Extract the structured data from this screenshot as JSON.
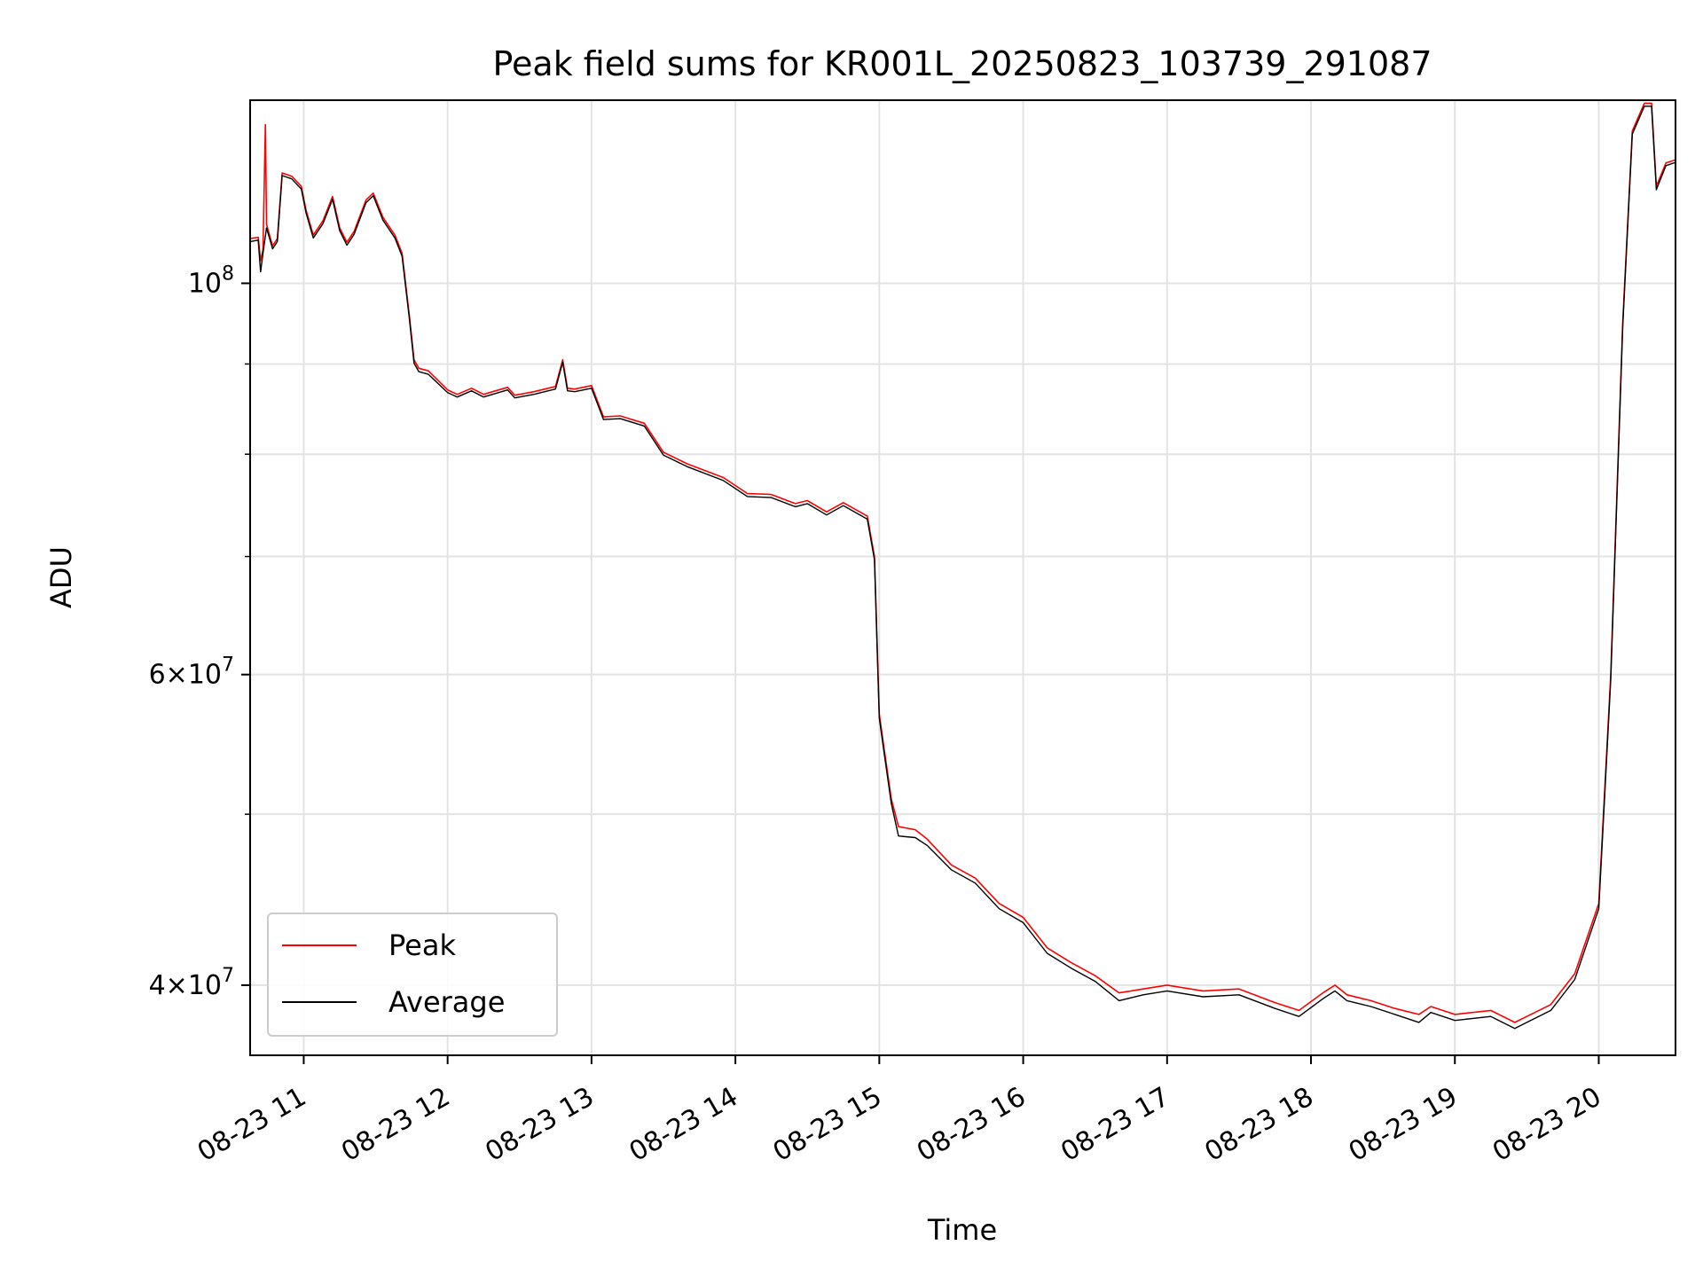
{
  "chart_data": {
    "type": "line",
    "title": "Peak field sums for KR001L_20250823_103739_291087",
    "xlabel": "Time",
    "ylabel": "ADU",
    "yscale": "log",
    "grid": true,
    "legend_position": "lower-left",
    "xlim": [
      "2025-08-23T10:37:39",
      "2025-08-23T20:32:00"
    ],
    "ylim": [
      36500000,
      127000000
    ],
    "x_ticks": [
      {
        "t": "2025-08-23T11:00",
        "label": "08-23 11"
      },
      {
        "t": "2025-08-23T12:00",
        "label": "08-23 12"
      },
      {
        "t": "2025-08-23T13:00",
        "label": "08-23 13"
      },
      {
        "t": "2025-08-23T14:00",
        "label": "08-23 14"
      },
      {
        "t": "2025-08-23T15:00",
        "label": "08-23 15"
      },
      {
        "t": "2025-08-23T16:00",
        "label": "08-23 16"
      },
      {
        "t": "2025-08-23T17:00",
        "label": "08-23 17"
      },
      {
        "t": "2025-08-23T18:00",
        "label": "08-23 18"
      },
      {
        "t": "2025-08-23T19:00",
        "label": "08-23 19"
      },
      {
        "t": "2025-08-23T20:00",
        "label": "08-23 20"
      }
    ],
    "y_major_ticks": [
      {
        "v": 40000000,
        "mant": "4",
        "exp": "7"
      },
      {
        "v": 60000000,
        "mant": "6",
        "exp": "7"
      },
      {
        "v": 100000000,
        "mant": "",
        "exp": "8"
      }
    ],
    "y_minor_gridlines": [
      50000000,
      70000000,
      80000000,
      90000000
    ],
    "series": [
      {
        "name": "Peak",
        "color": "#ff0000",
        "points": [
          [
            "2025-08-23T10:37:39",
            106000000
          ],
          [
            "2025-08-23T10:41:00",
            106200000
          ],
          [
            "2025-08-23T10:42:00",
            103000000
          ],
          [
            "2025-08-23T10:43:00",
            104500000
          ],
          [
            "2025-08-23T10:44:00",
            123000000
          ],
          [
            "2025-08-23T10:44:30",
            108000000
          ],
          [
            "2025-08-23T10:47:00",
            105000000
          ],
          [
            "2025-08-23T10:49:00",
            106000000
          ],
          [
            "2025-08-23T10:51:00",
            115500000
          ],
          [
            "2025-08-23T10:55:00",
            115000000
          ],
          [
            "2025-08-23T10:59:00",
            113500000
          ],
          [
            "2025-08-23T11:01:00",
            110000000
          ],
          [
            "2025-08-23T11:04:00",
            106500000
          ],
          [
            "2025-08-23T11:08:00",
            108500000
          ],
          [
            "2025-08-23T11:12:00",
            112000000
          ],
          [
            "2025-08-23T11:15:00",
            107500000
          ],
          [
            "2025-08-23T11:18:00",
            105500000
          ],
          [
            "2025-08-23T11:21:00",
            107000000
          ],
          [
            "2025-08-23T11:26:00",
            111500000
          ],
          [
            "2025-08-23T11:29:00",
            112500000
          ],
          [
            "2025-08-23T11:33:00",
            109000000
          ],
          [
            "2025-08-23T11:38:00",
            106500000
          ],
          [
            "2025-08-23T11:41:00",
            104000000
          ],
          [
            "2025-08-23T11:44:00",
            96000000
          ],
          [
            "2025-08-23T11:46:00",
            90500000
          ],
          [
            "2025-08-23T11:48:00",
            89500000
          ],
          [
            "2025-08-23T11:52:00",
            89200000
          ],
          [
            "2025-08-23T12:00:00",
            87000000
          ],
          [
            "2025-08-23T12:04:00",
            86500000
          ],
          [
            "2025-08-23T12:10:00",
            87200000
          ],
          [
            "2025-08-23T12:15:00",
            86500000
          ],
          [
            "2025-08-23T12:20:00",
            86900000
          ],
          [
            "2025-08-23T12:25:00",
            87300000
          ],
          [
            "2025-08-23T12:28:00",
            86400000
          ],
          [
            "2025-08-23T12:36:00",
            86800000
          ],
          [
            "2025-08-23T12:45:00",
            87400000
          ],
          [
            "2025-08-23T12:48:00",
            90500000
          ],
          [
            "2025-08-23T12:50:00",
            87200000
          ],
          [
            "2025-08-23T12:53:00",
            87100000
          ],
          [
            "2025-08-23T13:00:00",
            87500000
          ],
          [
            "2025-08-23T13:05:00",
            84000000
          ],
          [
            "2025-08-23T13:12:00",
            84100000
          ],
          [
            "2025-08-23T13:22:00",
            83300000
          ],
          [
            "2025-08-23T13:30:00",
            80200000
          ],
          [
            "2025-08-23T13:40:00",
            79000000
          ],
          [
            "2025-08-23T13:55:00",
            77600000
          ],
          [
            "2025-08-23T14:05:00",
            76000000
          ],
          [
            "2025-08-23T14:15:00",
            75900000
          ],
          [
            "2025-08-23T14:25:00",
            75000000
          ],
          [
            "2025-08-23T14:30:00",
            75300000
          ],
          [
            "2025-08-23T14:38:00",
            74200000
          ],
          [
            "2025-08-23T14:45:00",
            75100000
          ],
          [
            "2025-08-23T14:55:00",
            73800000
          ],
          [
            "2025-08-23T14:58:00",
            70000000
          ],
          [
            "2025-08-23T15:00:00",
            57000000
          ],
          [
            "2025-08-23T15:02:00",
            54500000
          ],
          [
            "2025-08-23T15:05:00",
            51000000
          ],
          [
            "2025-08-23T15:08:00",
            49200000
          ],
          [
            "2025-08-23T15:15:00",
            49000000
          ],
          [
            "2025-08-23T15:20:00",
            48400000
          ],
          [
            "2025-08-23T15:30:00",
            46800000
          ],
          [
            "2025-08-23T15:40:00",
            46000000
          ],
          [
            "2025-08-23T15:50:00",
            44500000
          ],
          [
            "2025-08-23T16:00:00",
            43700000
          ],
          [
            "2025-08-23T16:10:00",
            42000000
          ],
          [
            "2025-08-23T16:20:00",
            41200000
          ],
          [
            "2025-08-23T16:30:00",
            40500000
          ],
          [
            "2025-08-23T16:40:00",
            39600000
          ],
          [
            "2025-08-23T16:50:00",
            39800000
          ],
          [
            "2025-08-23T17:00:00",
            40000000
          ],
          [
            "2025-08-23T17:15:00",
            39700000
          ],
          [
            "2025-08-23T17:30:00",
            39800000
          ],
          [
            "2025-08-23T17:45:00",
            39100000
          ],
          [
            "2025-08-23T17:55:00",
            38700000
          ],
          [
            "2025-08-23T18:05:00",
            39600000
          ],
          [
            "2025-08-23T18:10:00",
            40000000
          ],
          [
            "2025-08-23T18:15:00",
            39500000
          ],
          [
            "2025-08-23T18:25:00",
            39200000
          ],
          [
            "2025-08-23T18:35:00",
            38800000
          ],
          [
            "2025-08-23T18:45:00",
            38500000
          ],
          [
            "2025-08-23T18:50:00",
            38900000
          ],
          [
            "2025-08-23T19:00:00",
            38500000
          ],
          [
            "2025-08-23T19:15:00",
            38700000
          ],
          [
            "2025-08-23T19:25:00",
            38100000
          ],
          [
            "2025-08-23T19:30:00",
            38400000
          ],
          [
            "2025-08-23T19:40:00",
            39000000
          ],
          [
            "2025-08-23T19:50:00",
            40600000
          ],
          [
            "2025-08-23T20:00:00",
            44500000
          ],
          [
            "2025-08-23T20:05:00",
            60000000
          ],
          [
            "2025-08-23T20:10:00",
            95000000
          ],
          [
            "2025-08-23T20:14:00",
            122000000
          ],
          [
            "2025-08-23T20:19:00",
            126500000
          ],
          [
            "2025-08-23T20:22:00",
            126500000
          ],
          [
            "2025-08-23T20:24:00",
            113500000
          ],
          [
            "2025-08-23T20:28:00",
            117000000
          ],
          [
            "2025-08-23T20:32:00",
            117500000
          ]
        ]
      },
      {
        "name": "Average",
        "color": "#000000",
        "points": [
          [
            "2025-08-23T10:37:39",
            105600000
          ],
          [
            "2025-08-23T10:41:00",
            105800000
          ],
          [
            "2025-08-23T10:42:00",
            101500000
          ],
          [
            "2025-08-23T10:43:00",
            104000000
          ],
          [
            "2025-08-23T10:44:30",
            107500000
          ],
          [
            "2025-08-23T10:47:00",
            104600000
          ],
          [
            "2025-08-23T10:49:00",
            105600000
          ],
          [
            "2025-08-23T10:51:00",
            115100000
          ],
          [
            "2025-08-23T10:55:00",
            114600000
          ],
          [
            "2025-08-23T10:59:00",
            113100000
          ],
          [
            "2025-08-23T11:01:00",
            109600000
          ],
          [
            "2025-08-23T11:04:00",
            106100000
          ],
          [
            "2025-08-23T11:08:00",
            108100000
          ],
          [
            "2025-08-23T11:12:00",
            111600000
          ],
          [
            "2025-08-23T11:15:00",
            107100000
          ],
          [
            "2025-08-23T11:18:00",
            105100000
          ],
          [
            "2025-08-23T11:21:00",
            106600000
          ],
          [
            "2025-08-23T11:26:00",
            111100000
          ],
          [
            "2025-08-23T11:29:00",
            112100000
          ],
          [
            "2025-08-23T11:33:00",
            108600000
          ],
          [
            "2025-08-23T11:38:00",
            106100000
          ],
          [
            "2025-08-23T11:41:00",
            103600000
          ],
          [
            "2025-08-23T11:44:00",
            95600000
          ],
          [
            "2025-08-23T11:46:00",
            90100000
          ],
          [
            "2025-08-23T11:48:00",
            89100000
          ],
          [
            "2025-08-23T11:52:00",
            88800000
          ],
          [
            "2025-08-23T12:00:00",
            86700000
          ],
          [
            "2025-08-23T12:04:00",
            86200000
          ],
          [
            "2025-08-23T12:10:00",
            86900000
          ],
          [
            "2025-08-23T12:15:00",
            86200000
          ],
          [
            "2025-08-23T12:20:00",
            86600000
          ],
          [
            "2025-08-23T12:25:00",
            87000000
          ],
          [
            "2025-08-23T12:28:00",
            86100000
          ],
          [
            "2025-08-23T12:36:00",
            86500000
          ],
          [
            "2025-08-23T12:45:00",
            87100000
          ],
          [
            "2025-08-23T12:48:00",
            90200000
          ],
          [
            "2025-08-23T12:50:00",
            86900000
          ],
          [
            "2025-08-23T12:53:00",
            86800000
          ],
          [
            "2025-08-23T13:00:00",
            87200000
          ],
          [
            "2025-08-23T13:05:00",
            83700000
          ],
          [
            "2025-08-23T13:12:00",
            83800000
          ],
          [
            "2025-08-23T13:22:00",
            83000000
          ],
          [
            "2025-08-23T13:30:00",
            79900000
          ],
          [
            "2025-08-23T13:40:00",
            78700000
          ],
          [
            "2025-08-23T13:55:00",
            77300000
          ],
          [
            "2025-08-23T14:05:00",
            75700000
          ],
          [
            "2025-08-23T14:15:00",
            75600000
          ],
          [
            "2025-08-23T14:25:00",
            74700000
          ],
          [
            "2025-08-23T14:30:00",
            75000000
          ],
          [
            "2025-08-23T14:38:00",
            73900000
          ],
          [
            "2025-08-23T14:45:00",
            74800000
          ],
          [
            "2025-08-23T14:55:00",
            73500000
          ],
          [
            "2025-08-23T14:58:00",
            69700000
          ],
          [
            "2025-08-23T15:00:00",
            56700000
          ],
          [
            "2025-08-23T15:02:00",
            54200000
          ],
          [
            "2025-08-23T15:05:00",
            50700000
          ],
          [
            "2025-08-23T15:08:00",
            48600000
          ],
          [
            "2025-08-23T15:15:00",
            48500000
          ],
          [
            "2025-08-23T15:20:00",
            48000000
          ],
          [
            "2025-08-23T15:30:00",
            46500000
          ],
          [
            "2025-08-23T15:40:00",
            45700000
          ],
          [
            "2025-08-23T15:50:00",
            44200000
          ],
          [
            "2025-08-23T16:00:00",
            43400000
          ],
          [
            "2025-08-23T16:10:00",
            41700000
          ],
          [
            "2025-08-23T16:20:00",
            40900000
          ],
          [
            "2025-08-23T16:30:00",
            40200000
          ],
          [
            "2025-08-23T16:40:00",
            39200000
          ],
          [
            "2025-08-23T16:50:00",
            39500000
          ],
          [
            "2025-08-23T17:00:00",
            39700000
          ],
          [
            "2025-08-23T17:15:00",
            39400000
          ],
          [
            "2025-08-23T17:30:00",
            39500000
          ],
          [
            "2025-08-23T17:45:00",
            38800000
          ],
          [
            "2025-08-23T17:55:00",
            38400000
          ],
          [
            "2025-08-23T18:05:00",
            39300000
          ],
          [
            "2025-08-23T18:10:00",
            39700000
          ],
          [
            "2025-08-23T18:15:00",
            39200000
          ],
          [
            "2025-08-23T18:25:00",
            38900000
          ],
          [
            "2025-08-23T18:35:00",
            38500000
          ],
          [
            "2025-08-23T18:45:00",
            38100000
          ],
          [
            "2025-08-23T18:50:00",
            38600000
          ],
          [
            "2025-08-23T19:00:00",
            38200000
          ],
          [
            "2025-08-23T19:15:00",
            38400000
          ],
          [
            "2025-08-23T19:25:00",
            37800000
          ],
          [
            "2025-08-23T19:30:00",
            38100000
          ],
          [
            "2025-08-23T19:40:00",
            38700000
          ],
          [
            "2025-08-23T19:50:00",
            40300000
          ],
          [
            "2025-08-23T20:00:00",
            44200000
          ],
          [
            "2025-08-23T20:05:00",
            59600000
          ],
          [
            "2025-08-23T20:10:00",
            94500000
          ],
          [
            "2025-08-23T20:14:00",
            121500000
          ],
          [
            "2025-08-23T20:19:00",
            126000000
          ],
          [
            "2025-08-23T20:22:00",
            126000000
          ],
          [
            "2025-08-23T20:24:00",
            113000000
          ],
          [
            "2025-08-23T20:28:00",
            116600000
          ],
          [
            "2025-08-23T20:32:00",
            117100000
          ]
        ]
      }
    ]
  }
}
